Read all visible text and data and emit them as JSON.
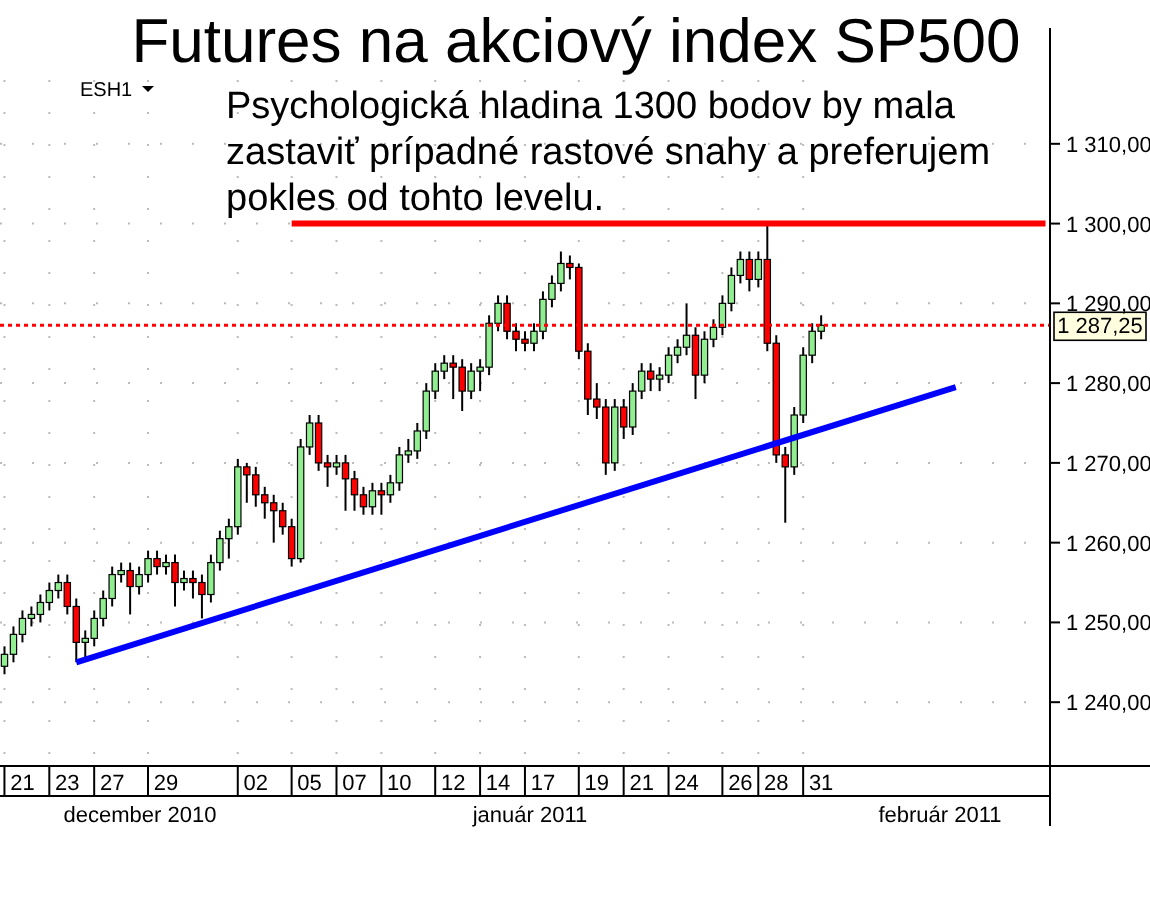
{
  "chart_data": {
    "type": "candlestick",
    "title": "Futures na akciový index SP500",
    "categories": [
      null,
      null,
      "21",
      null,
      null,
      null,
      null,
      "23",
      null,
      null,
      null,
      null,
      "27",
      null,
      null,
      null,
      null,
      null,
      "29",
      null,
      null,
      null,
      null,
      null,
      null,
      null,
      null,
      null,
      "02",
      null,
      null,
      null,
      null,
      null,
      "05",
      null,
      null,
      null,
      null,
      "07",
      null,
      null,
      null,
      null,
      "10",
      null,
      null,
      null,
      null,
      null,
      "12",
      null,
      null,
      null,
      null,
      "14",
      null,
      null,
      null,
      null,
      "17",
      null,
      null,
      null,
      null,
      null,
      "19",
      null,
      null,
      null,
      null,
      "21",
      null,
      null,
      null,
      null,
      "24",
      null,
      null,
      null,
      null,
      null,
      "26",
      null,
      null,
      null,
      "28",
      null,
      null,
      null,
      null,
      "31",
      null,
      null,
      null,
      null,
      null,
      null,
      null,
      null,
      null,
      null,
      null,
      null,
      null,
      null,
      null,
      null,
      null,
      null,
      null,
      null,
      null,
      null,
      null,
      null,
      null
    ],
    "ohlc": [
      [
        1244.5,
        1247,
        1243.5,
        1246
      ],
      [
        1246,
        1249.5,
        1245,
        1248.5
      ],
      [
        1248.5,
        1251.5,
        1247.5,
        1250.5
      ],
      [
        1250.5,
        1252,
        1249.5,
        1251
      ],
      [
        1251,
        1253.5,
        1250,
        1252.5
      ],
      [
        1252.5,
        1255,
        1251.5,
        1254
      ],
      [
        1254,
        1256,
        1253,
        1255
      ],
      [
        1255,
        1256,
        1251,
        1252
      ],
      [
        1252,
        1253,
        1245,
        1247.5
      ],
      [
        1247.5,
        1249,
        1245.5,
        1248
      ],
      [
        1248,
        1251.5,
        1247,
        1250.5
      ],
      [
        1250.5,
        1254,
        1249.5,
        1253
      ],
      [
        1253,
        1257,
        1252,
        1256
      ],
      [
        1256,
        1257.5,
        1255,
        1256.5
      ],
      [
        1256.5,
        1257.5,
        1251,
        1254.5
      ],
      [
        1254.5,
        1257,
        1253.5,
        1256
      ],
      [
        1256,
        1259,
        1255,
        1258
      ],
      [
        1258,
        1259,
        1256,
        1257
      ],
      [
        1257,
        1258.5,
        1256,
        1257.5
      ],
      [
        1257.5,
        1258.5,
        1252,
        1255
      ],
      [
        1255,
        1256.5,
        1254,
        1255.5
      ],
      [
        1255.5,
        1256.5,
        1253,
        1255
      ],
      [
        1255,
        1256,
        1250.5,
        1253.5
      ],
      [
        1253.5,
        1258.5,
        1252.5,
        1257.5
      ],
      [
        1257.5,
        1261.5,
        1256.5,
        1260.5
      ],
      [
        1260.5,
        1263,
        1258,
        1262
      ],
      [
        1262,
        1270.5,
        1261,
        1269.5
      ],
      [
        1269.5,
        1270,
        1265,
        1268.5
      ],
      [
        1268.5,
        1269.5,
        1264.5,
        1266
      ],
      [
        1266,
        1267,
        1263,
        1265
      ],
      [
        1265,
        1266,
        1260,
        1264
      ],
      [
        1264,
        1265,
        1261,
        1262
      ],
      [
        1262,
        1263,
        1257,
        1258
      ],
      [
        1258,
        1273,
        1257.5,
        1272
      ],
      [
        1272,
        1276,
        1271,
        1275
      ],
      [
        1275,
        1276,
        1269,
        1270
      ],
      [
        1270,
        1271,
        1267,
        1269.5
      ],
      [
        1269.5,
        1271,
        1268.5,
        1270
      ],
      [
        1270,
        1271,
        1264,
        1268
      ],
      [
        1268,
        1269,
        1264,
        1266
      ],
      [
        1266,
        1267,
        1263.5,
        1264.5
      ],
      [
        1264.5,
        1267.5,
        1263.5,
        1266.5
      ],
      [
        1266.5,
        1267.5,
        1263.5,
        1266
      ],
      [
        1266,
        1268.5,
        1265,
        1267.5
      ],
      [
        1267.5,
        1272,
        1266.5,
        1271
      ],
      [
        1271,
        1273,
        1270,
        1271.5
      ],
      [
        1271.5,
        1275,
        1270.5,
        1274
      ],
      [
        1274,
        1280,
        1273,
        1279
      ],
      [
        1279,
        1282.5,
        1278,
        1281.5
      ],
      [
        1281.5,
        1283.5,
        1280.5,
        1282.5
      ],
      [
        1282.5,
        1283.5,
        1278,
        1282
      ],
      [
        1282,
        1283,
        1276.5,
        1279
      ],
      [
        1279,
        1282.5,
        1278,
        1281.5
      ],
      [
        1281.5,
        1283,
        1279,
        1282
      ],
      [
        1282,
        1288.5,
        1281,
        1287.5
      ],
      [
        1287.5,
        1291,
        1286.5,
        1290
      ],
      [
        1290,
        1291,
        1285.5,
        1286.5
      ],
      [
        1286.5,
        1287.5,
        1284,
        1285.5
      ],
      [
        1285.5,
        1286.5,
        1284,
        1285
      ],
      [
        1285,
        1287.5,
        1284,
        1286.5
      ],
      [
        1286.5,
        1291.5,
        1285.5,
        1290.5
      ],
      [
        1290.5,
        1293.5,
        1289.5,
        1292.5
      ],
      [
        1292.5,
        1296.5,
        1291.5,
        1295
      ],
      [
        1295,
        1296,
        1293,
        1294.5
      ],
      [
        1294.5,
        1295,
        1283,
        1284
      ],
      [
        1284,
        1285,
        1276,
        1278
      ],
      [
        1278,
        1280,
        1275.5,
        1277
      ],
      [
        1277,
        1278,
        1268.5,
        1270
      ],
      [
        1270,
        1278,
        1269,
        1277
      ],
      [
        1277,
        1278,
        1273,
        1274.5
      ],
      [
        1274.5,
        1280,
        1273.5,
        1279
      ],
      [
        1279,
        1282.5,
        1278,
        1281.5
      ],
      [
        1281.5,
        1282.5,
        1279,
        1280.5
      ],
      [
        1280.5,
        1282,
        1279,
        1281
      ],
      [
        1281,
        1284.5,
        1280,
        1283.5
      ],
      [
        1283.5,
        1285.5,
        1282.5,
        1284.5
      ],
      [
        1284.5,
        1290,
        1283.5,
        1286
      ],
      [
        1286,
        1287,
        1278,
        1281
      ],
      [
        1281,
        1286.5,
        1280,
        1285.5
      ],
      [
        1285.5,
        1288,
        1284.5,
        1287
      ],
      [
        1287,
        1291,
        1286,
        1290
      ],
      [
        1290,
        1294.5,
        1289,
        1293.5
      ],
      [
        1293.5,
        1296.5,
        1292.5,
        1295.5
      ],
      [
        1295.5,
        1296.5,
        1291.5,
        1293
      ],
      [
        1293,
        1296.5,
        1292,
        1295.5
      ],
      [
        1295.5,
        1300,
        1284,
        1285
      ],
      [
        1285,
        1286,
        1270,
        1271
      ],
      [
        1271,
        1272,
        1262.5,
        1269.5
      ],
      [
        1269.5,
        1277,
        1268.5,
        1276
      ],
      [
        1276,
        1284.5,
        1275,
        1283.5
      ],
      [
        1283.5,
        1287.5,
        1282.5,
        1286.5
      ],
      [
        1286.5,
        1288.5,
        1285.5,
        1287.25
      ],
      null,
      null,
      null,
      null,
      null,
      null,
      null,
      null,
      null,
      null,
      null,
      null,
      null,
      null,
      null,
      null,
      null,
      null,
      null,
      null,
      null,
      null,
      null,
      null,
      null
    ],
    "series": [
      {
        "type": "line",
        "values": [
          null,
          null,
          null,
          null,
          null,
          null,
          null,
          null,
          1245,
          null,
          null,
          null,
          null,
          null,
          null,
          null,
          null,
          null,
          null,
          null,
          null,
          null,
          null,
          null,
          null,
          null,
          null,
          null,
          null,
          null,
          null,
          null,
          null,
          null,
          null,
          null,
          null,
          null,
          null,
          null,
          null,
          null,
          null,
          null,
          null,
          null,
          null,
          null,
          null,
          null,
          null,
          null,
          null,
          null,
          null,
          null,
          null,
          null,
          null,
          null,
          null,
          null,
          null,
          null,
          null,
          null,
          null,
          null,
          null,
          null,
          null,
          null,
          null,
          null,
          null,
          null,
          null,
          null,
          null,
          null,
          null,
          null,
          null,
          null,
          null,
          null,
          null,
          null,
          null,
          null,
          null,
          null,
          null,
          null,
          null,
          null,
          null,
          null,
          null,
          null,
          null,
          null,
          null,
          null,
          null,
          null,
          1279.5,
          null,
          null,
          null,
          null,
          null,
          null,
          null,
          null,
          null,
          null
        ],
        "color": "#0000ff"
      },
      {
        "type": "line",
        "values": [
          null,
          null,
          null,
          null,
          null,
          null,
          null,
          null,
          null,
          null,
          null,
          null,
          null,
          null,
          null,
          null,
          null,
          null,
          null,
          null,
          null,
          null,
          null,
          null,
          null,
          null,
          null,
          null,
          null,
          null,
          null,
          null,
          1300,
          null,
          null,
          null,
          null,
          null,
          null,
          null,
          null,
          null,
          null,
          null,
          null,
          null,
          null,
          null,
          null,
          null,
          null,
          null,
          null,
          null,
          null,
          null,
          null,
          null,
          null,
          null,
          null,
          null,
          null,
          null,
          null,
          null,
          null,
          null,
          null,
          null,
          null,
          null,
          null,
          null,
          null,
          null,
          null,
          null,
          null,
          null,
          null,
          null,
          null,
          null,
          null,
          null,
          null,
          null,
          null,
          null,
          null,
          null,
          null,
          null,
          null,
          null,
          null,
          null,
          null,
          null,
          null,
          null,
          null,
          null,
          null,
          null,
          null,
          null,
          null,
          null,
          null,
          null,
          null,
          null,
          null,
          null,
          1300
        ],
        "color": "#ff0000"
      }
    ],
    "ylim": [
      1232,
      1318
    ],
    "yticks": [
      {
        "value": 1240,
        "label": "1 240,00"
      },
      {
        "value": 1250,
        "label": "1 250,00"
      },
      {
        "value": 1260,
        "label": "1 260,00"
      },
      {
        "value": 1270,
        "label": "1 270,00"
      },
      {
        "value": 1280,
        "label": "1 280,00"
      },
      {
        "value": 1290,
        "label": "1 290,00"
      },
      {
        "value": 1300,
        "label": "1 300,00"
      },
      {
        "value": 1310,
        "label": "1 310,00"
      }
    ],
    "ref_lines": [
      {
        "axis": "y",
        "value": 1287.25,
        "label": "1 287,25",
        "color": "#ff0000",
        "line_style": "dotted"
      }
    ],
    "grid": true,
    "annotations": [
      "Psychologická hladina 1300 bodov by mala\nzastaviť prípadné rastové snahy a preferujem\npokles od tohto levelu.",
      "ESH1",
      "december 2010",
      "január 2011",
      "február 2011"
    ]
  }
}
